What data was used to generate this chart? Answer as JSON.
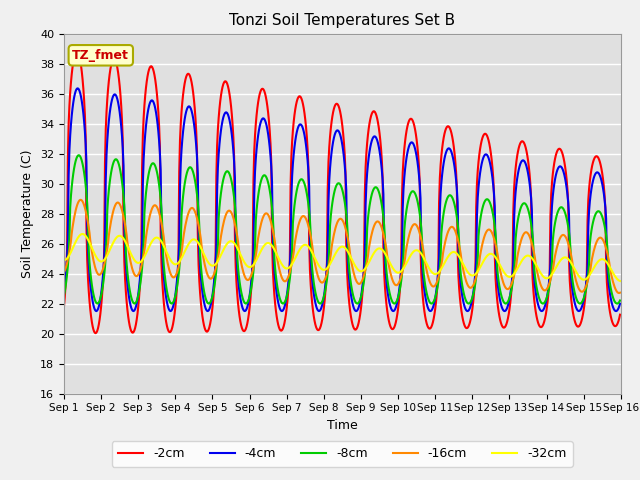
{
  "title": "Tonzi Soil Temperatures Set B",
  "xlabel": "Time",
  "ylabel": "Soil Temperature (C)",
  "ylim": [
    16,
    40
  ],
  "yticks": [
    16,
    18,
    20,
    22,
    24,
    26,
    28,
    30,
    32,
    34,
    36,
    38,
    40
  ],
  "xtick_labels": [
    "Sep 1",
    "Sep 2",
    "Sep 3",
    "Sep 4",
    "Sep 5",
    "Sep 6",
    "Sep 7",
    "Sep 8",
    "Sep 9",
    "Sep 10",
    "Sep 11",
    "Sep 12",
    "Sep 13",
    "Sep 14",
    "Sep 15",
    "Sep 16"
  ],
  "legend_label": "TZ_fmet",
  "series_labels": [
    "-2cm",
    "-4cm",
    "-8cm",
    "-16cm",
    "-32cm"
  ],
  "series_colors": [
    "#ff0000",
    "#0000ee",
    "#00cc00",
    "#ff8800",
    "#ffff00"
  ],
  "line_width": 1.5,
  "plot_bg": "#e0e0e0",
  "fig_bg": "#f0f0f0",
  "annotation_box_color": "#ffffcc",
  "annotation_text_color": "#cc0000",
  "annotation_edge_color": "#aaaa00",
  "grid_color": "#ffffff",
  "n_days": 15,
  "n_pts_per_day": 48
}
